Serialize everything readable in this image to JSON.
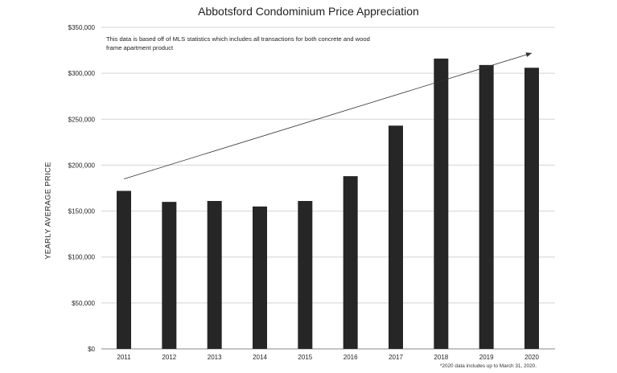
{
  "chart_data": {
    "type": "bar",
    "title": "Abbotsford Condominium Price Appreciation",
    "ylabel": "YEARLY AVERAGE PRICE",
    "xlabel": "",
    "categories": [
      "2011",
      "2012",
      "2013",
      "2014",
      "2015",
      "2016",
      "2017",
      "2018",
      "2019",
      "2020"
    ],
    "values": [
      172000,
      160000,
      161000,
      155000,
      161000,
      188000,
      243000,
      316000,
      309000,
      306000
    ],
    "ylim": [
      0,
      350000
    ],
    "yticks": [
      0,
      50000,
      100000,
      150000,
      200000,
      250000,
      300000,
      350000
    ],
    "ytick_labels": [
      "$0",
      "$50,000",
      "$100,000",
      "$150,000",
      "$200,000",
      "$250,000",
      "$300,000",
      "$350,000"
    ],
    "grid": true,
    "bar_color": "#262626",
    "annotation_text": "This data is based off of MLS statistics which includes all transactions for both concrete and wood frame apartment product",
    "trend_arrow": {
      "from": {
        "x": "2011",
        "y": 185000
      },
      "to": {
        "x": "2020",
        "y": 322000
      }
    },
    "footnote": "*2020 data includes up to March 31, 2020."
  }
}
